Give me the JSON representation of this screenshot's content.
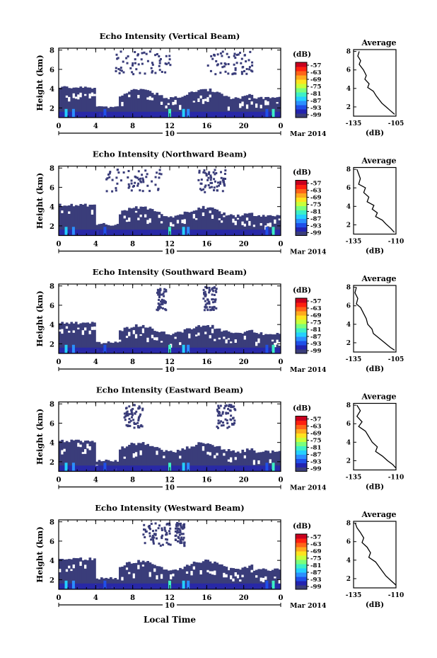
{
  "figure": {
    "xlabel": "Local Time",
    "date_label": "Mar 2014",
    "time_ticks": [
      "0",
      "4",
      "8",
      "12",
      "16",
      "20",
      "0"
    ],
    "day_label": "10",
    "height_label": "Height (km)",
    "height_ticks": [
      "2",
      "4",
      "6",
      "8"
    ],
    "colorbar_unit": "(dB)",
    "colorbar_ticks": [
      "-57",
      "-63",
      "-69",
      "-75",
      "-81",
      "-87",
      "-93",
      "-99"
    ],
    "colorbar_colors": [
      "#3a3d7a",
      "#2323b0",
      "#1f4fe8",
      "#2b8fff",
      "#24d0ff",
      "#3df0c6",
      "#7bff7b",
      "#c8ff3a",
      "#ffe31e",
      "#ffaa1e",
      "#ff6419",
      "#ff2010",
      "#c8001e"
    ],
    "average_title": "Average",
    "average_unit": "(dB)"
  },
  "chart_data": [
    {
      "type": "heatmap",
      "title": "Echo Intensity (Vertical Beam)",
      "xlabel": "Local Time",
      "ylabel": "Height (km)",
      "xlim": [
        0,
        24
      ],
      "ylim": [
        1,
        8.2
      ],
      "profile": {
        "title": "Average",
        "xlabel": "(dB)",
        "xticks": [
          "-135",
          "-105"
        ],
        "xlim": [
          -135,
          -105
        ],
        "points": [
          [
            -131,
            8
          ],
          [
            -132,
            7.5
          ],
          [
            -130,
            7
          ],
          [
            -131,
            6.6
          ],
          [
            -128,
            6
          ],
          [
            -126,
            5.4
          ],
          [
            -127,
            5
          ],
          [
            -124,
            4.5
          ],
          [
            -125,
            4.1
          ],
          [
            -121,
            3.7
          ],
          [
            -119,
            3.2
          ],
          [
            -117,
            2.8
          ],
          [
            -115,
            2.4
          ],
          [
            -112,
            2
          ],
          [
            -109,
            1.6
          ],
          [
            -106,
            1.2
          ]
        ]
      },
      "upper_level_patches": [
        [
          6,
          12
        ],
        [
          16,
          21
        ]
      ]
    },
    {
      "type": "heatmap",
      "title": "Echo Intensity (Northward Beam)",
      "xlabel": "Local Time",
      "ylabel": "Height (km)",
      "xlim": [
        0,
        24
      ],
      "ylim": [
        1,
        8.2
      ],
      "profile": {
        "title": "Average",
        "xlabel": "(dB)",
        "xticks": [
          "-135",
          "-110"
        ],
        "xlim": [
          -135,
          -110
        ],
        "points": [
          [
            -133,
            8
          ],
          [
            -131,
            7
          ],
          [
            -132,
            6.4
          ],
          [
            -128,
            6
          ],
          [
            -129,
            5.5
          ],
          [
            -126,
            5
          ],
          [
            -127,
            4.5
          ],
          [
            -123,
            4.1
          ],
          [
            -124,
            3.7
          ],
          [
            -121,
            3.3
          ],
          [
            -122,
            2.9
          ],
          [
            -118,
            2.5
          ],
          [
            -116,
            2.1
          ],
          [
            -113,
            1.6
          ],
          [
            -111,
            1.2
          ]
        ]
      },
      "upper_level_patches": [
        [
          5,
          11
        ],
        [
          15,
          18
        ]
      ]
    },
    {
      "type": "heatmap",
      "title": "Echo Intensity (Southward Beam)",
      "xlabel": "Local Time",
      "ylabel": "Height (km)",
      "xlim": [
        0,
        24
      ],
      "ylim": [
        1,
        8.2
      ],
      "profile": {
        "title": "Average",
        "xlabel": "(dB)",
        "xticks": [
          "-135",
          "-105"
        ],
        "xlim": [
          -135,
          -105
        ],
        "points": [
          [
            -133,
            8
          ],
          [
            -134,
            7.4
          ],
          [
            -132,
            6.8
          ],
          [
            -133,
            6.2
          ],
          [
            -130,
            5.8
          ],
          [
            -128,
            5.2
          ],
          [
            -126,
            4.6
          ],
          [
            -125,
            4
          ],
          [
            -122,
            3.5
          ],
          [
            -121,
            3
          ],
          [
            -117,
            2.5
          ],
          [
            -113,
            2
          ],
          [
            -109,
            1.5
          ],
          [
            -106,
            1.2
          ]
        ]
      },
      "upper_level_patches": [
        [
          10.5,
          11.5
        ],
        [
          15.5,
          17
        ]
      ]
    },
    {
      "type": "heatmap",
      "title": "Echo Intensity (Eastward Beam)",
      "xlabel": "Local Time",
      "ylabel": "Height (km)",
      "xlim": [
        0,
        24
      ],
      "ylim": [
        1,
        8.2
      ],
      "profile": {
        "title": "Average",
        "xlabel": "(dB)",
        "xticks": [
          "-135",
          "-110"
        ],
        "xlim": [
          -135,
          -110
        ],
        "points": [
          [
            -133,
            8
          ],
          [
            -131,
            7.4
          ],
          [
            -133,
            6.8
          ],
          [
            -130,
            6.2
          ],
          [
            -132,
            5.7
          ],
          [
            -128,
            5.2
          ],
          [
            -126,
            4.6
          ],
          [
            -124,
            4
          ],
          [
            -121,
            3.5
          ],
          [
            -122,
            3
          ],
          [
            -118,
            2.5
          ],
          [
            -115,
            2
          ],
          [
            -112,
            1.6
          ],
          [
            -110,
            1.2
          ]
        ]
      },
      "upper_level_patches": [
        [
          7,
          9
        ],
        [
          17,
          19
        ]
      ]
    },
    {
      "type": "heatmap",
      "title": "Echo Intensity (Westward Beam)",
      "xlabel": "Local Time",
      "ylabel": "Height (km)",
      "xlim": [
        0,
        24
      ],
      "ylim": [
        1,
        8.2
      ],
      "profile": {
        "title": "Average",
        "xlabel": "(dB)",
        "xticks": [
          "-135",
          "-110"
        ],
        "xlim": [
          -135,
          -110
        ],
        "points": [
          [
            -134,
            8
          ],
          [
            -133,
            7.5
          ],
          [
            -131,
            7
          ],
          [
            -129,
            6.4
          ],
          [
            -130,
            5.9
          ],
          [
            -127,
            5.4
          ],
          [
            -125,
            4.8
          ],
          [
            -126,
            4.3
          ],
          [
            -122,
            3.8
          ],
          [
            -120,
            3.3
          ],
          [
            -118,
            2.8
          ],
          [
            -116,
            2.3
          ],
          [
            -113,
            1.8
          ],
          [
            -110,
            1.3
          ]
        ]
      },
      "upper_level_patches": [
        [
          9,
          12
        ],
        [
          12.5,
          13.5
        ]
      ]
    }
  ]
}
